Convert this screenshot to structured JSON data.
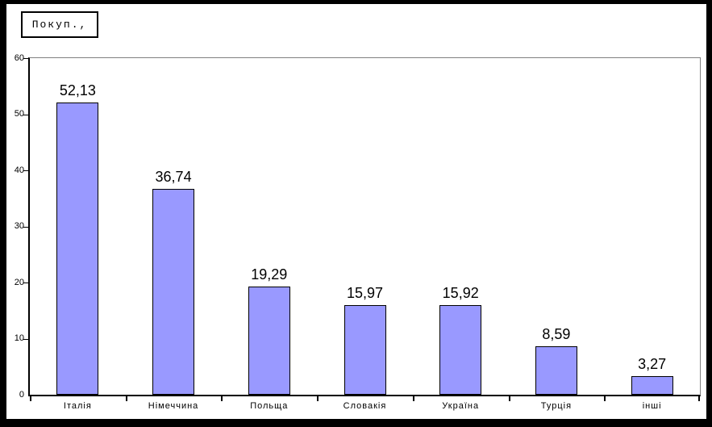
{
  "chart": {
    "legend_label": "Покуп.,",
    "colors": {
      "bar_fill": "#9999FF",
      "bar_border": "#000000",
      "axis": "#000000",
      "plot_border": "#808080",
      "frame": "#000000",
      "background": "#FFFFFF"
    }
  },
  "chart_data": {
    "type": "bar",
    "title": "Покуп.,",
    "categories": [
      "Італія",
      "Німеччина",
      "Польща",
      "Словакія",
      "Україна",
      "Турція",
      "інші"
    ],
    "values": [
      52.13,
      36.74,
      19.29,
      15.97,
      15.92,
      8.59,
      3.27
    ],
    "value_labels": [
      "52,13",
      "36,74",
      "19,29",
      "15,97",
      "15,92",
      "8,59",
      "3,27"
    ],
    "xlabel": "",
    "ylabel": "",
    "ylim": [
      0,
      60
    ],
    "yticks": [
      0,
      10,
      20,
      30,
      40,
      50,
      60
    ],
    "ytick_labels": [
      "0",
      "10",
      "20",
      "30",
      "40",
      "50",
      "60"
    ],
    "grid": false,
    "legend_position": "top-left",
    "decimal_separator": ","
  }
}
